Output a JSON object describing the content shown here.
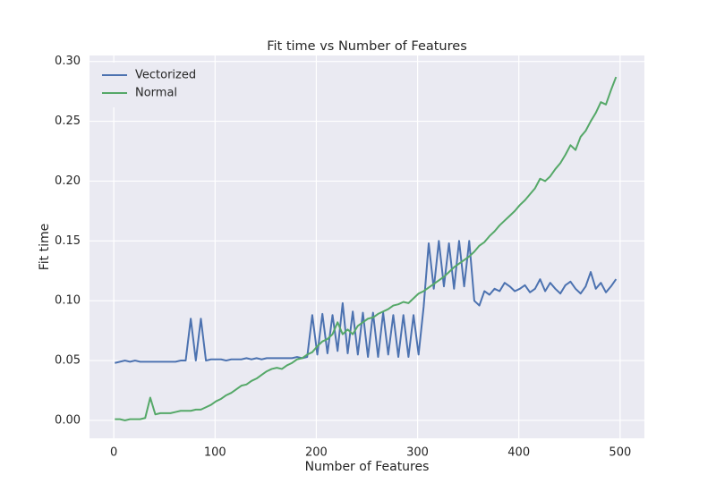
{
  "chart_data": {
    "type": "line",
    "title": "Fit time vs Number of Features",
    "xlabel": "Number of Features",
    "ylabel": "Fit time",
    "x": [
      1,
      6,
      11,
      16,
      21,
      26,
      31,
      36,
      41,
      46,
      51,
      56,
      61,
      66,
      71,
      76,
      81,
      86,
      91,
      96,
      101,
      106,
      111,
      116,
      121,
      126,
      131,
      136,
      141,
      146,
      151,
      156,
      161,
      166,
      171,
      176,
      181,
      186,
      191,
      196,
      201,
      206,
      211,
      216,
      221,
      226,
      231,
      236,
      241,
      246,
      251,
      256,
      261,
      266,
      271,
      276,
      281,
      286,
      291,
      296,
      301,
      306,
      311,
      316,
      321,
      326,
      331,
      336,
      341,
      346,
      351,
      356,
      361,
      366,
      371,
      376,
      381,
      386,
      391,
      396,
      401,
      406,
      411,
      416,
      421,
      426,
      431,
      436,
      441,
      446,
      451,
      456,
      461,
      466,
      471,
      476,
      481,
      486,
      491,
      496
    ],
    "series": [
      {
        "name": "Vectorized",
        "color": "#4c72b0",
        "values": [
          0.048,
          0.049,
          0.05,
          0.049,
          0.05,
          0.049,
          0.049,
          0.049,
          0.049,
          0.049,
          0.049,
          0.049,
          0.049,
          0.05,
          0.05,
          0.085,
          0.05,
          0.085,
          0.05,
          0.051,
          0.051,
          0.051,
          0.05,
          0.051,
          0.051,
          0.051,
          0.052,
          0.051,
          0.052,
          0.051,
          0.052,
          0.052,
          0.052,
          0.052,
          0.052,
          0.052,
          0.053,
          0.052,
          0.053,
          0.088,
          0.055,
          0.089,
          0.056,
          0.088,
          0.058,
          0.098,
          0.056,
          0.091,
          0.055,
          0.09,
          0.053,
          0.09,
          0.053,
          0.09,
          0.055,
          0.088,
          0.053,
          0.088,
          0.053,
          0.088,
          0.055,
          0.095,
          0.148,
          0.11,
          0.15,
          0.112,
          0.148,
          0.11,
          0.15,
          0.112,
          0.15,
          0.1,
          0.096,
          0.108,
          0.105,
          0.11,
          0.108,
          0.115,
          0.112,
          0.108,
          0.11,
          0.113,
          0.107,
          0.11,
          0.118,
          0.108,
          0.115,
          0.11,
          0.106,
          0.113,
          0.116,
          0.11,
          0.106,
          0.112,
          0.124,
          0.11,
          0.115,
          0.107,
          0.112,
          0.118
        ]
      },
      {
        "name": "Normal",
        "color": "#55a868",
        "values": [
          0.001,
          0.001,
          0.0,
          0.001,
          0.001,
          0.001,
          0.002,
          0.019,
          0.005,
          0.006,
          0.006,
          0.006,
          0.007,
          0.008,
          0.008,
          0.008,
          0.009,
          0.009,
          0.011,
          0.013,
          0.016,
          0.018,
          0.021,
          0.023,
          0.026,
          0.029,
          0.03,
          0.033,
          0.035,
          0.038,
          0.041,
          0.043,
          0.044,
          0.043,
          0.046,
          0.048,
          0.051,
          0.052,
          0.055,
          0.057,
          0.062,
          0.066,
          0.068,
          0.072,
          0.082,
          0.072,
          0.076,
          0.072,
          0.079,
          0.082,
          0.085,
          0.086,
          0.089,
          0.091,
          0.093,
          0.096,
          0.097,
          0.099,
          0.098,
          0.102,
          0.106,
          0.108,
          0.111,
          0.114,
          0.117,
          0.12,
          0.124,
          0.128,
          0.131,
          0.134,
          0.137,
          0.141,
          0.146,
          0.149,
          0.154,
          0.158,
          0.163,
          0.167,
          0.171,
          0.175,
          0.18,
          0.184,
          0.189,
          0.194,
          0.202,
          0.2,
          0.204,
          0.21,
          0.215,
          0.222,
          0.23,
          0.226,
          0.237,
          0.242,
          0.25,
          0.257,
          0.266,
          0.264,
          0.276,
          0.287
        ]
      }
    ],
    "xlim": [
      -24,
      524
    ],
    "xticks": [
      0,
      100,
      200,
      300,
      400,
      500
    ],
    "ylim": [
      -0.015,
      0.305
    ],
    "yticks": [
      {
        "value": 0,
        "label": "0.00"
      },
      {
        "value": 0.05,
        "label": "0.05"
      },
      {
        "value": 0.1,
        "label": "0.10"
      },
      {
        "value": 0.15,
        "label": "0.15"
      },
      {
        "value": 0.2,
        "label": "0.20"
      },
      {
        "value": 0.25,
        "label": "0.25"
      },
      {
        "value": 0.3,
        "label": "0.30"
      }
    ],
    "grid": true,
    "legend": "upper left"
  }
}
